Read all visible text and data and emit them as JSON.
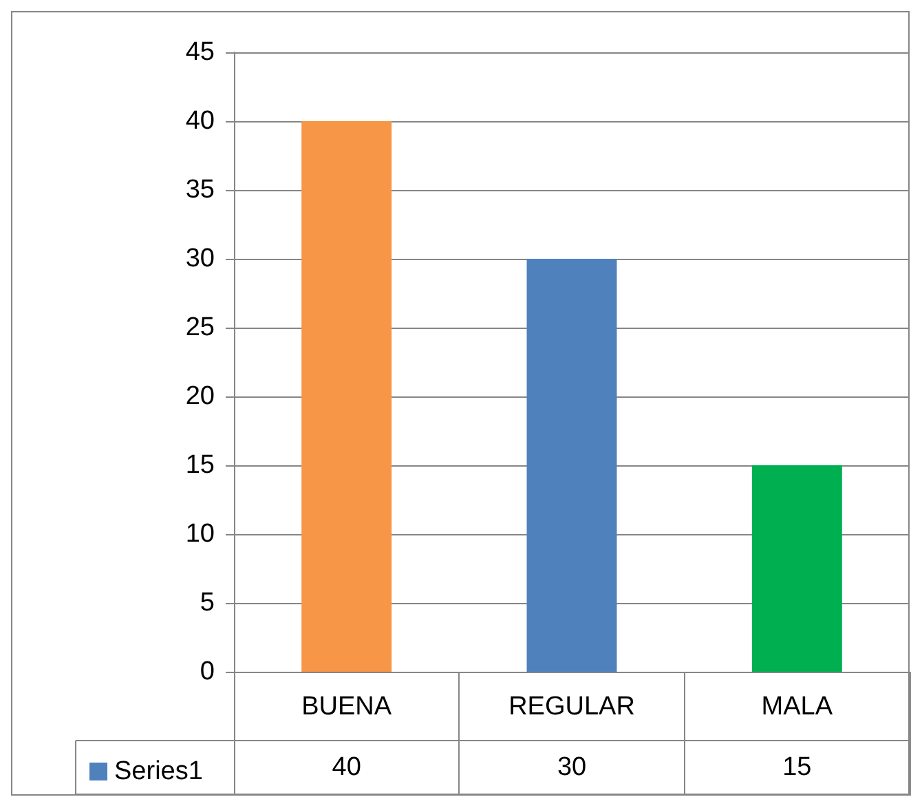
{
  "chart_data": {
    "type": "bar",
    "categories": [
      "BUENA",
      "REGULAR",
      "MALA"
    ],
    "series": [
      {
        "name": "Series1",
        "color": "#4f81bd",
        "colors": [
          "#f79646",
          "#4f81bd",
          "#00b050"
        ],
        "values": [
          40,
          30,
          15
        ]
      }
    ],
    "ylim": [
      0,
      45
    ],
    "yticks": [
      0,
      5,
      10,
      15,
      20,
      25,
      30,
      35,
      40,
      45
    ],
    "grid": "y",
    "legend": "bottom left",
    "data_labels": true
  }
}
